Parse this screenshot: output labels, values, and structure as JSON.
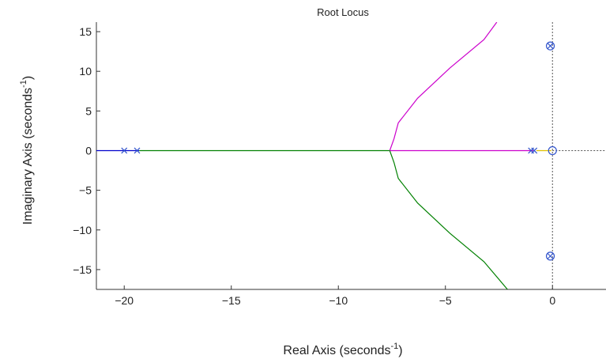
{
  "chart_data": {
    "type": "line",
    "title": "Root Locus",
    "xlabel": {
      "main": "Real Axis (seconds",
      "sup": "-1",
      "close": ")"
    },
    "ylabel": {
      "main": "Imaginary Axis (seconds",
      "sup": "-1",
      "close": ")"
    },
    "xlim": [
      -21.3,
      2.5
    ],
    "ylim": [
      -17.5,
      16.2
    ],
    "x_ticks": [
      -20,
      -15,
      -10,
      -5,
      0
    ],
    "y_ticks": [
      15,
      10,
      5,
      0,
      -5,
      -10,
      -15
    ],
    "grid": false,
    "series": [
      {
        "color": "#0000cc",
        "points": [
          [
            -21.3,
            0
          ],
          [
            -19.3,
            0
          ]
        ]
      },
      {
        "color": "#008000",
        "points": [
          [
            -19.3,
            0
          ],
          [
            -7.6,
            0
          ]
        ]
      },
      {
        "color": "#cc00cc",
        "points": [
          [
            -7.6,
            0
          ],
          [
            -0.9,
            0
          ]
        ]
      },
      {
        "color": "#e0c000",
        "points": [
          [
            -0.75,
            0
          ],
          [
            -0.05,
            0
          ]
        ]
      },
      {
        "color": "#cc00cc",
        "points": [
          [
            -7.6,
            0
          ],
          [
            -7.4,
            1.5
          ],
          [
            -7.2,
            3.5
          ],
          [
            -6.3,
            6.6
          ],
          [
            -4.8,
            10.4
          ],
          [
            -3.2,
            14
          ],
          [
            -2.6,
            16.2
          ]
        ]
      },
      {
        "color": "#008000",
        "points": [
          [
            -7.6,
            0
          ],
          [
            -7.4,
            -1.5
          ],
          [
            -7.2,
            -3.5
          ],
          [
            -6.3,
            -6.6
          ],
          [
            -4.8,
            -10.4
          ],
          [
            -3.2,
            -14
          ],
          [
            -2.1,
            -17.5
          ]
        ]
      }
    ],
    "poles": [
      [
        -20,
        0
      ],
      [
        -19.4,
        0
      ],
      [
        -1.0,
        0
      ],
      [
        -0.85,
        0
      ],
      [
        -0.1,
        13.2
      ],
      [
        -0.1,
        -13.3
      ]
    ],
    "zeros": [
      [
        0,
        0
      ],
      [
        -0.1,
        13.2
      ],
      [
        -0.1,
        -13.3
      ]
    ],
    "colors": {
      "pole": "#3355cc",
      "zero": "#3355cc",
      "reference": "#555555",
      "frame": "#333333"
    }
  }
}
